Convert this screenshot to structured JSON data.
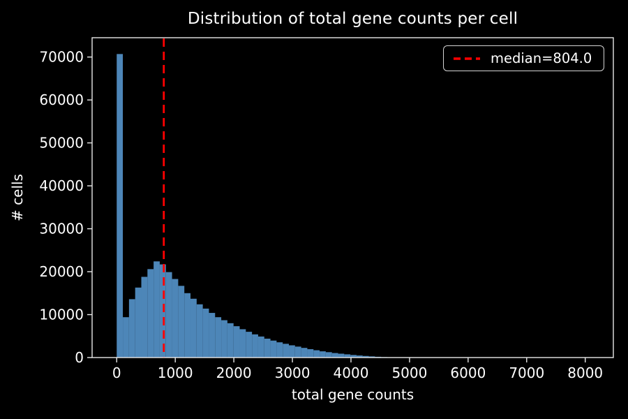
{
  "figure": {
    "background": "#000000"
  },
  "title": "Distribution of total gene counts per cell",
  "axes": {
    "x_label": "total gene counts",
    "y_label": "# cells",
    "x_ticks": [
      0,
      1000,
      2000,
      3000,
      4000,
      5000,
      6000,
      7000,
      8000
    ],
    "y_ticks": [
      0,
      10000,
      20000,
      30000,
      40000,
      50000,
      60000,
      70000
    ]
  },
  "legend": {
    "label": "median=804.0"
  },
  "colors": {
    "bar": "#4d86b8",
    "median_line": "#ff0000",
    "axis": "#e8e8e8",
    "text": "#ffffff",
    "legend_border": "#d4d4d4",
    "background": "#000000"
  },
  "chart_data": {
    "type": "bar",
    "subtype": "histogram",
    "title": "Distribution of total gene counts per cell",
    "xlabel": "total gene counts",
    "ylabel": "# cells",
    "median": 804.0,
    "legend_entries": [
      "median=804.0"
    ],
    "legend_position": "upper right",
    "grid": false,
    "bin_start": 0,
    "bin_width": 105,
    "xlim": [
      -420,
      8480
    ],
    "ylim": [
      0,
      74500
    ],
    "counts": [
      70700,
      9400,
      13600,
      16300,
      18800,
      20600,
      22400,
      21700,
      19900,
      18300,
      16700,
      15000,
      13700,
      12400,
      11400,
      10400,
      9400,
      8700,
      8000,
      7300,
      6600,
      6000,
      5400,
      4900,
      4400,
      3950,
      3550,
      3200,
      2850,
      2550,
      2250,
      1950,
      1700,
      1450,
      1250,
      1050,
      900,
      750,
      600,
      480,
      370,
      270,
      180,
      110,
      60,
      35,
      20,
      12,
      8,
      6,
      5,
      4,
      4,
      3,
      3,
      2,
      2,
      2,
      2,
      1,
      1,
      1,
      1,
      1,
      1,
      1,
      1,
      1,
      1,
      1,
      1,
      0,
      0,
      1,
      0,
      0,
      1,
      0,
      0,
      1
    ]
  }
}
